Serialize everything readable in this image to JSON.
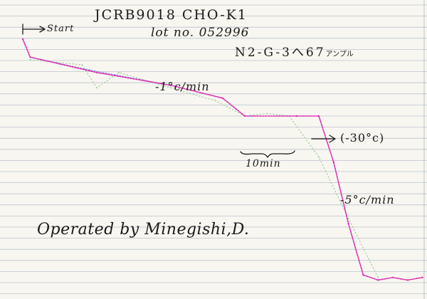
{
  "header": {
    "line1": "JCRB9018  CHO-K1",
    "line2": "lot no. 052996",
    "line3_main": "N2-G-3へ67",
    "line3_kana": "アンプル"
  },
  "annotations": {
    "start": "Start",
    "rate1": "-1°c/min",
    "hold": "(-30°c)",
    "duration": "10min",
    "rate2": "-5°c/min",
    "operator": "Operated by Minegishi,D."
  },
  "colors": {
    "paper": "#f8f6f0",
    "grid": "#b9c4cf",
    "pink_trace": "#d82fb3",
    "green_trace": "#9bc79b",
    "blue_trace": "#7b8fd6",
    "ink": "#1b1b1b"
  },
  "chart_data": {
    "type": "line",
    "title": "",
    "xlabel": "",
    "ylabel": "",
    "grid": true,
    "legend": "none",
    "series": [
      {
        "color": "#d82fb3",
        "points": [
          [
            0,
            0
          ],
          [
            1,
            -7
          ],
          [
            10,
            -13
          ],
          [
            20,
            -18
          ],
          [
            27,
            -23
          ],
          [
            30,
            -30
          ],
          [
            37,
            -30
          ],
          [
            40,
            -30
          ],
          [
            42,
            -48
          ],
          [
            44,
            -72
          ],
          [
            46,
            -92
          ],
          [
            48,
            -94
          ],
          [
            50,
            -93
          ],
          [
            52,
            -94
          ],
          [
            54,
            -93
          ]
        ]
      },
      {
        "color": "#9bc79b",
        "points": [
          [
            1,
            -8
          ],
          [
            8,
            -10
          ],
          [
            10,
            -19
          ],
          [
            13,
            -13
          ],
          [
            20,
            -19
          ],
          [
            26,
            -24
          ],
          [
            30,
            -30
          ],
          [
            33,
            -29
          ],
          [
            36,
            -30
          ],
          [
            40,
            -46
          ],
          [
            44,
            -70
          ],
          [
            48,
            -93
          ]
        ]
      },
      {
        "color": "#7b8fd6",
        "points": [
          [
            1,
            -7
          ],
          [
            9,
            -12
          ],
          [
            20,
            -18
          ],
          [
            27,
            -23
          ]
        ]
      }
    ]
  }
}
